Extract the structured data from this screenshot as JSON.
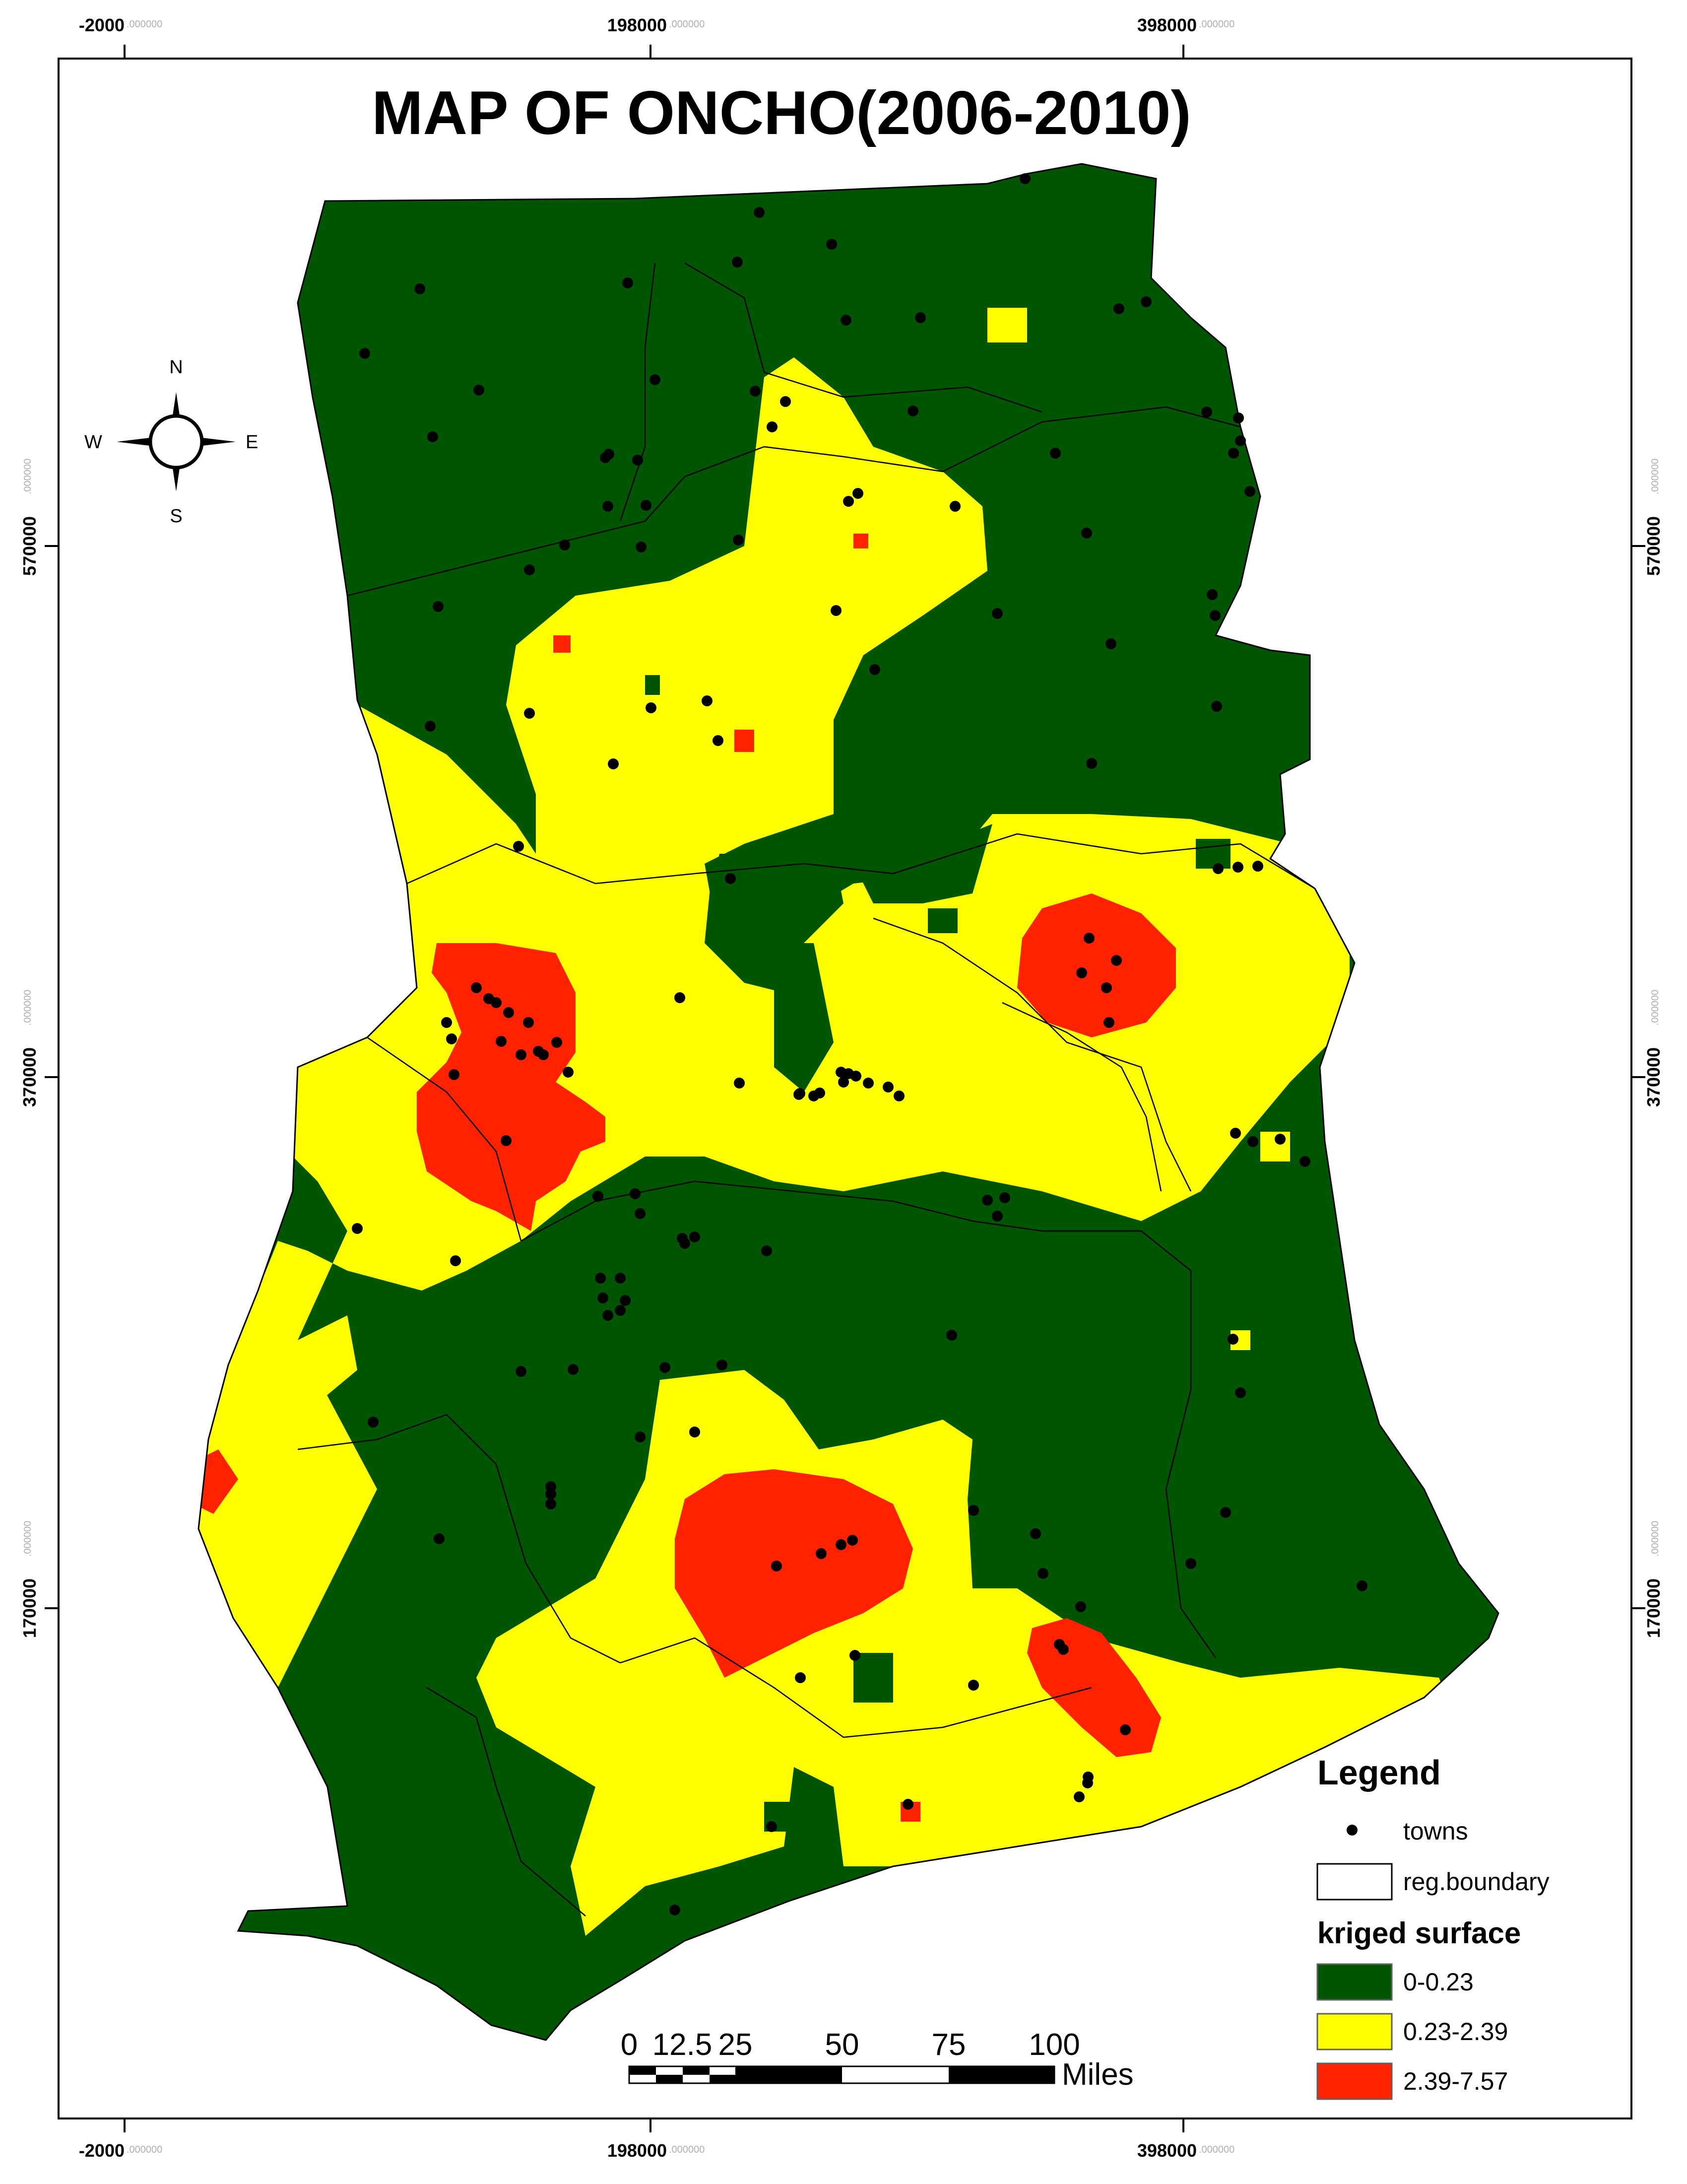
{
  "title": "MAP OF ONCHO(2006-2010)",
  "grid": {
    "x_ticks": [
      {
        "main": "-2000",
        "dec": ".000000"
      },
      {
        "main": "198000",
        "dec": ".000000"
      },
      {
        "main": "398000",
        "dec": ".000000"
      }
    ],
    "y_ticks": [
      {
        "main": "570000",
        "dec": ".000000"
      },
      {
        "main": "370000",
        "dec": ".000000"
      },
      {
        "main": "170000",
        "dec": ".000000"
      }
    ]
  },
  "compass": {
    "n": "N",
    "s": "S",
    "e": "E",
    "w": "W"
  },
  "legend": {
    "title": "Legend",
    "towns_label": "towns",
    "boundary_label": "reg.boundary",
    "surface_title": "kriged surface",
    "classes": [
      {
        "label": "0-0.23",
        "color": "#005500"
      },
      {
        "label": "0.23-2.39",
        "color": "#ffff00"
      },
      {
        "label": "2.39-7.57",
        "color": "#ff2200"
      }
    ]
  },
  "scale_bar": {
    "ticks": [
      "0",
      "12.5",
      "25",
      "50",
      "75",
      "100"
    ],
    "unit": "Miles"
  }
}
